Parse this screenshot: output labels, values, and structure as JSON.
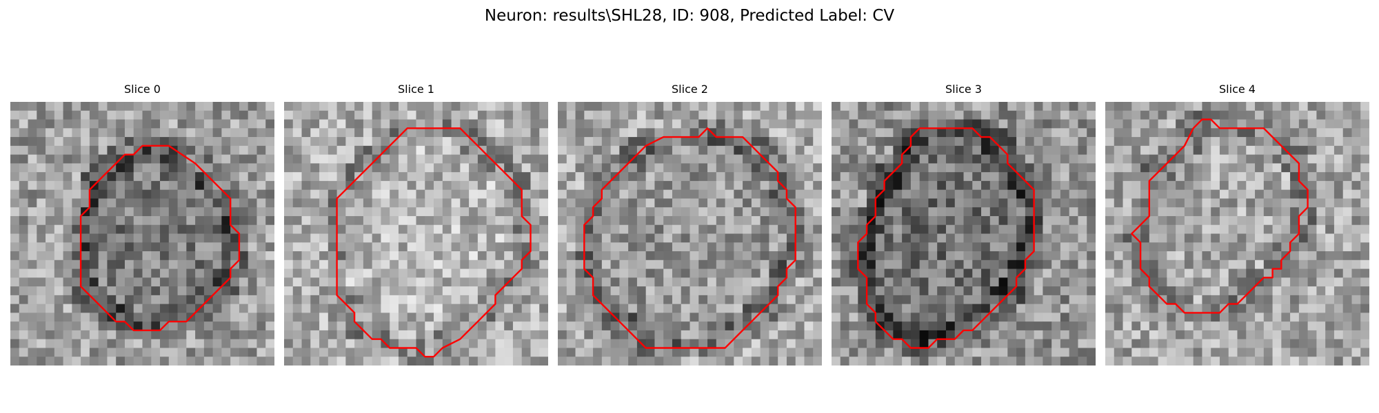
{
  "figure": {
    "title": "Neuron: results\\SHL28, ID: 908, Predicted Label: CV"
  },
  "colors": {
    "contour": "#ff0000",
    "colormap": "gray"
  },
  "panels": [
    {
      "title": "Slice 0",
      "contour": [
        [
          15,
          5
        ],
        [
          18,
          5
        ],
        [
          21,
          7
        ],
        [
          22,
          8
        ],
        [
          23,
          9
        ],
        [
          24,
          10
        ],
        [
          25,
          11
        ],
        [
          25,
          12
        ],
        [
          25,
          13
        ],
        [
          25,
          14
        ],
        [
          26,
          15
        ],
        [
          26,
          16
        ],
        [
          26,
          17
        ],
        [
          26,
          18
        ],
        [
          25,
          19
        ],
        [
          25,
          20
        ],
        [
          24,
          21
        ],
        [
          23,
          22
        ],
        [
          22,
          23
        ],
        [
          21,
          24
        ],
        [
          20,
          25
        ],
        [
          19,
          25
        ],
        [
          18,
          25
        ],
        [
          17,
          26
        ],
        [
          16,
          26
        ],
        [
          15,
          26
        ],
        [
          14,
          26
        ],
        [
          13,
          25
        ],
        [
          12,
          25
        ],
        [
          11,
          24
        ],
        [
          10,
          23
        ],
        [
          9,
          22
        ],
        [
          8,
          21
        ],
        [
          8,
          20
        ],
        [
          8,
          19
        ],
        [
          8,
          18
        ],
        [
          8,
          17
        ],
        [
          8,
          16
        ],
        [
          8,
          15
        ],
        [
          8,
          14
        ],
        [
          8,
          13
        ],
        [
          9,
          12
        ],
        [
          9,
          11
        ],
        [
          9,
          10
        ],
        [
          10,
          9
        ],
        [
          11,
          8
        ],
        [
          12,
          7
        ],
        [
          13,
          6
        ],
        [
          14,
          6
        ],
        [
          15,
          5
        ]
      ]
    },
    {
      "title": "Slice 1",
      "contour": [
        [
          15,
          3
        ],
        [
          20,
          3
        ],
        [
          21,
          4
        ],
        [
          22,
          5
        ],
        [
          23,
          6
        ],
        [
          24,
          7
        ],
        [
          25,
          8
        ],
        [
          26,
          9
        ],
        [
          27,
          10
        ],
        [
          27,
          11
        ],
        [
          27,
          12
        ],
        [
          27,
          13
        ],
        [
          28,
          14
        ],
        [
          28,
          15
        ],
        [
          28,
          16
        ],
        [
          28,
          17
        ],
        [
          27,
          18
        ],
        [
          27,
          19
        ],
        [
          26,
          20
        ],
        [
          25,
          21
        ],
        [
          24,
          22
        ],
        [
          24,
          23
        ],
        [
          23,
          24
        ],
        [
          22,
          25
        ],
        [
          21,
          26
        ],
        [
          20,
          27
        ],
        [
          18,
          28
        ],
        [
          17,
          29
        ],
        [
          16,
          29
        ],
        [
          15,
          28
        ],
        [
          12,
          28
        ],
        [
          11,
          27
        ],
        [
          10,
          27
        ],
        [
          9,
          26
        ],
        [
          8,
          25
        ],
        [
          8,
          24
        ],
        [
          7,
          23
        ],
        [
          6,
          22
        ],
        [
          6,
          21
        ],
        [
          6,
          20
        ],
        [
          6,
          19
        ],
        [
          6,
          18
        ],
        [
          6,
          17
        ],
        [
          6,
          16
        ],
        [
          6,
          15
        ],
        [
          6,
          14
        ],
        [
          6,
          13
        ],
        [
          6,
          12
        ],
        [
          6,
          11
        ],
        [
          7,
          10
        ],
        [
          8,
          9
        ],
        [
          9,
          8
        ],
        [
          10,
          7
        ],
        [
          11,
          6
        ],
        [
          12,
          5
        ],
        [
          13,
          4
        ],
        [
          14,
          3
        ],
        [
          15,
          3
        ]
      ]
    },
    {
      "title": "Slice 2",
      "contour": [
        [
          17,
          3
        ],
        [
          18,
          4
        ],
        [
          21,
          4
        ],
        [
          22,
          5
        ],
        [
          23,
          6
        ],
        [
          24,
          7
        ],
        [
          25,
          8
        ],
        [
          25,
          9
        ],
        [
          26,
          10
        ],
        [
          26,
          11
        ],
        [
          27,
          12
        ],
        [
          27,
          13
        ],
        [
          27,
          14
        ],
        [
          27,
          15
        ],
        [
          27,
          16
        ],
        [
          27,
          17
        ],
        [
          27,
          18
        ],
        [
          26,
          19
        ],
        [
          26,
          20
        ],
        [
          25,
          21
        ],
        [
          25,
          22
        ],
        [
          24,
          23
        ],
        [
          23,
          24
        ],
        [
          22,
          25
        ],
        [
          21,
          26
        ],
        [
          19,
          28
        ],
        [
          10,
          28
        ],
        [
          8,
          26
        ],
        [
          7,
          25
        ],
        [
          6,
          24
        ],
        [
          5,
          23
        ],
        [
          4,
          22
        ],
        [
          4,
          21
        ],
        [
          4,
          20
        ],
        [
          3,
          19
        ],
        [
          3,
          18
        ],
        [
          3,
          17
        ],
        [
          3,
          16
        ],
        [
          3,
          15
        ],
        [
          3,
          14
        ],
        [
          4,
          13
        ],
        [
          4,
          12
        ],
        [
          5,
          11
        ],
        [
          5,
          10
        ],
        [
          6,
          9
        ],
        [
          7,
          8
        ],
        [
          8,
          7
        ],
        [
          9,
          6
        ],
        [
          10,
          5
        ],
        [
          12,
          4
        ],
        [
          16,
          4
        ],
        [
          17,
          3
        ]
      ]
    },
    {
      "title": "Slice 3",
      "contour": [
        [
          10,
          3
        ],
        [
          16,
          3
        ],
        [
          17,
          4
        ],
        [
          18,
          4
        ],
        [
          19,
          5
        ],
        [
          20,
          6
        ],
        [
          20,
          7
        ],
        [
          21,
          8
        ],
        [
          22,
          9
        ],
        [
          23,
          10
        ],
        [
          23,
          11
        ],
        [
          23,
          12
        ],
        [
          23,
          13
        ],
        [
          23,
          14
        ],
        [
          23,
          15
        ],
        [
          23,
          16
        ],
        [
          23,
          17
        ],
        [
          22,
          18
        ],
        [
          22,
          19
        ],
        [
          21,
          20
        ],
        [
          21,
          21
        ],
        [
          20,
          22
        ],
        [
          19,
          23
        ],
        [
          18,
          24
        ],
        [
          17,
          25
        ],
        [
          16,
          26
        ],
        [
          15,
          26
        ],
        [
          14,
          27
        ],
        [
          12,
          27
        ],
        [
          11,
          28
        ],
        [
          9,
          28
        ],
        [
          8,
          27
        ],
        [
          7,
          27
        ],
        [
          6,
          26
        ],
        [
          5,
          25
        ],
        [
          5,
          24
        ],
        [
          4,
          23
        ],
        [
          4,
          22
        ],
        [
          4,
          21
        ],
        [
          4,
          20
        ],
        [
          3,
          19
        ],
        [
          3,
          18
        ],
        [
          3,
          17
        ],
        [
          3,
          16
        ],
        [
          4,
          15
        ],
        [
          4,
          14
        ],
        [
          5,
          13
        ],
        [
          5,
          12
        ],
        [
          5,
          11
        ],
        [
          6,
          10
        ],
        [
          6,
          9
        ],
        [
          7,
          8
        ],
        [
          8,
          7
        ],
        [
          8,
          6
        ],
        [
          9,
          5
        ],
        [
          9,
          4
        ],
        [
          10,
          3
        ]
      ]
    },
    {
      "title": "Slice 4",
      "contour": [
        [
          11,
          2
        ],
        [
          12,
          2
        ],
        [
          13,
          3
        ],
        [
          18,
          3
        ],
        [
          19,
          4
        ],
        [
          20,
          5
        ],
        [
          21,
          6
        ],
        [
          22,
          7
        ],
        [
          22,
          8
        ],
        [
          22,
          9
        ],
        [
          23,
          10
        ],
        [
          23,
          11
        ],
        [
          23,
          12
        ],
        [
          22,
          13
        ],
        [
          22,
          14
        ],
        [
          22,
          15
        ],
        [
          21,
          16
        ],
        [
          21,
          17
        ],
        [
          20,
          18
        ],
        [
          20,
          19
        ],
        [
          19,
          19
        ],
        [
          19,
          20
        ],
        [
          18,
          20
        ],
        [
          17,
          21
        ],
        [
          16,
          22
        ],
        [
          15,
          23
        ],
        [
          14,
          23
        ],
        [
          13,
          24
        ],
        [
          9,
          24
        ],
        [
          8,
          23
        ],
        [
          7,
          23
        ],
        [
          6,
          22
        ],
        [
          5,
          21
        ],
        [
          5,
          20
        ],
        [
          4,
          19
        ],
        [
          4,
          18
        ],
        [
          4,
          17
        ],
        [
          4,
          16
        ],
        [
          3,
          15
        ],
        [
          4,
          14
        ],
        [
          5,
          13
        ],
        [
          5,
          12
        ],
        [
          5,
          11
        ],
        [
          5,
          10
        ],
        [
          5,
          9
        ],
        [
          6,
          8
        ],
        [
          7,
          7
        ],
        [
          8,
          6
        ],
        [
          9,
          5
        ],
        [
          10,
          3
        ],
        [
          11,
          2
        ]
      ]
    }
  ]
}
